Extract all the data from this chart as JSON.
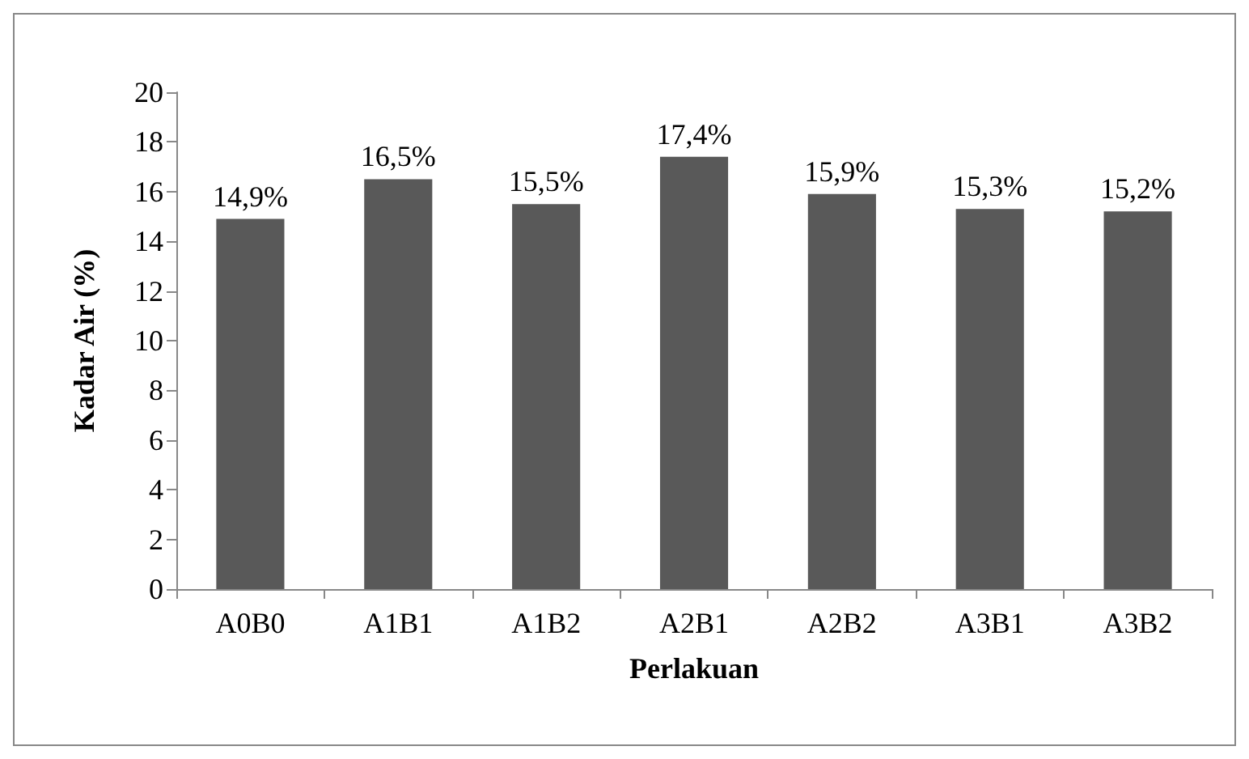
{
  "chart_data": {
    "type": "bar",
    "xlabel": "Perlakuan",
    "ylabel": "Kadar Air (%)",
    "categories": [
      "A0B0",
      "A1B1",
      "A1B2",
      "A2B1",
      "A2B2",
      "A3B1",
      "A3B2"
    ],
    "values": [
      14.9,
      16.5,
      15.5,
      17.4,
      15.9,
      15.3,
      15.2
    ],
    "value_labels": [
      "14,9%",
      "16,5%",
      "15,5%",
      "17,4%",
      "15,9%",
      "15,3%",
      "15,2%"
    ],
    "color": "#595959",
    "ylim": [
      0,
      20
    ],
    "yticks": [
      0,
      2,
      4,
      6,
      8,
      10,
      12,
      14,
      16,
      18,
      20
    ],
    "grid": false
  }
}
